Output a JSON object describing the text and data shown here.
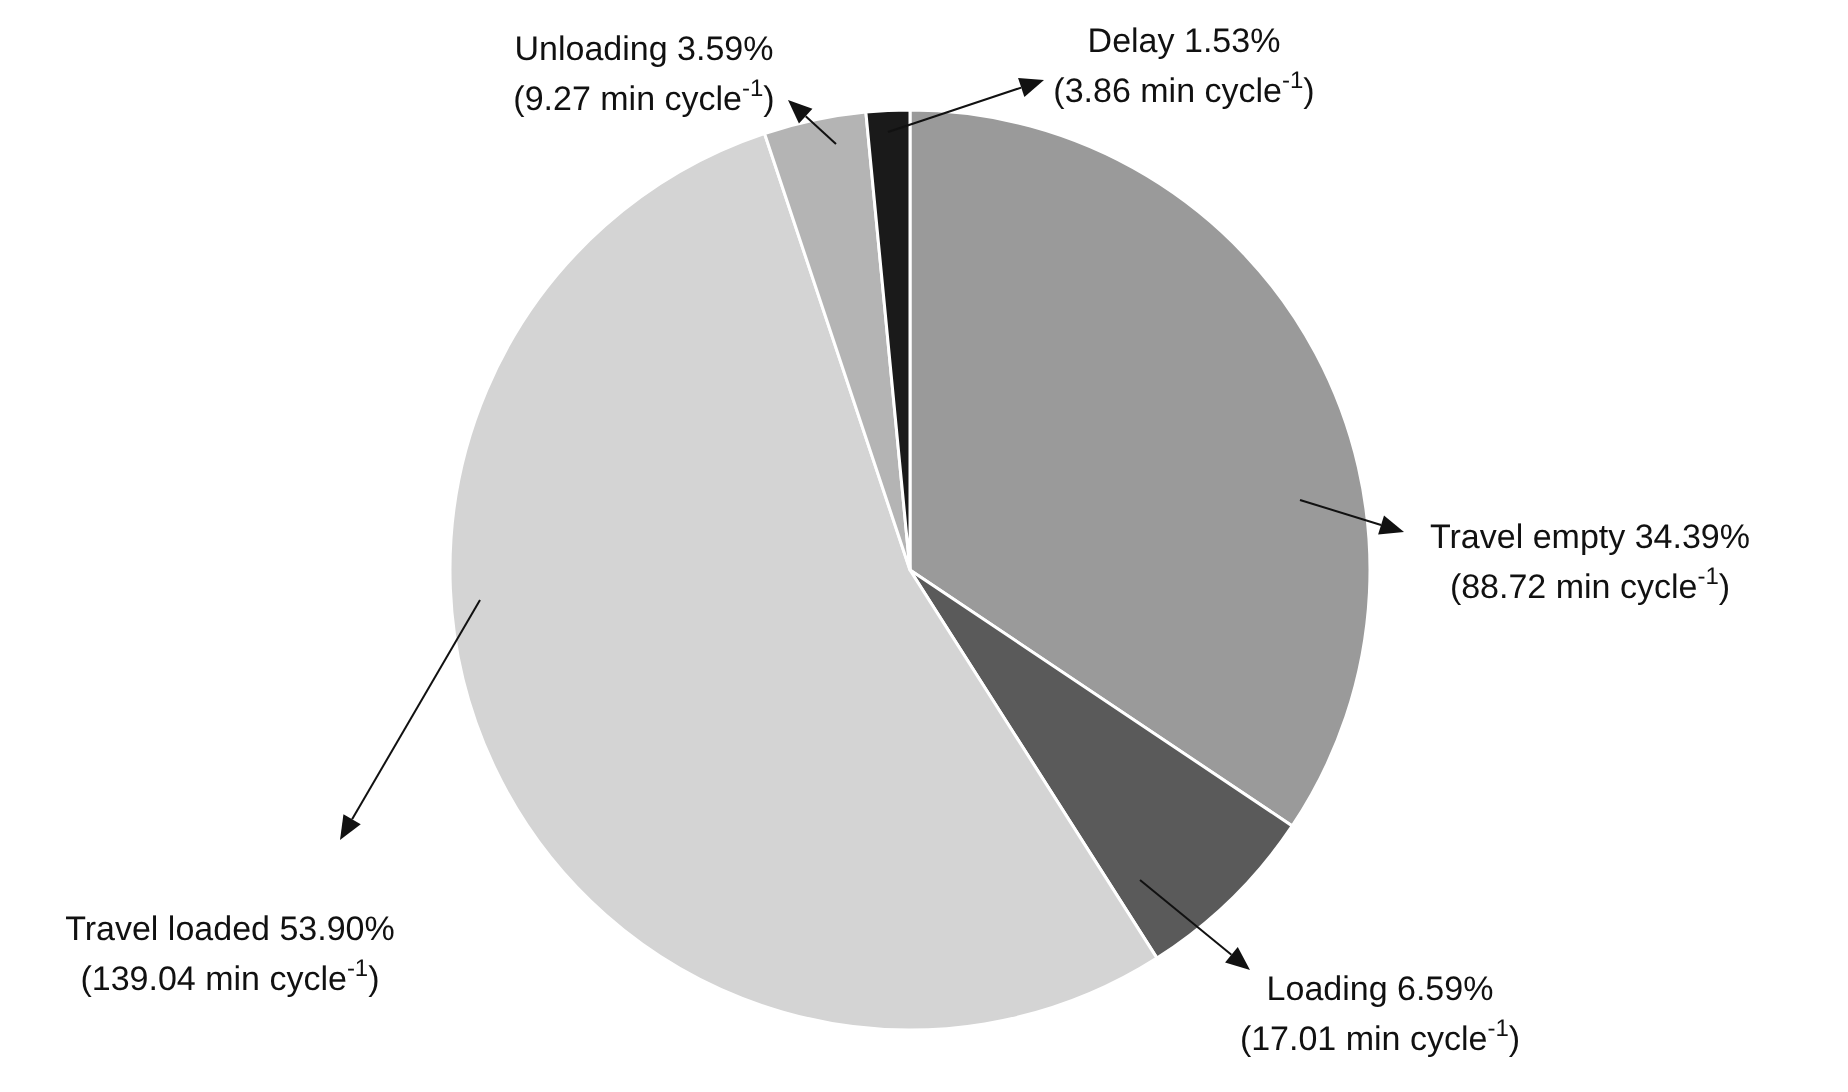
{
  "chart_data": {
    "type": "pie",
    "categories": [
      "Travel empty",
      "Loading",
      "Travel loaded",
      "Unloading",
      "Delay"
    ],
    "values": [
      34.39,
      6.59,
      53.9,
      3.59,
      1.53
    ],
    "colors": [
      "#9a9a9a",
      "#5a5a5a",
      "#d4d4d4",
      "#b4b4b4",
      "#1a1a1a"
    ],
    "value_labels": [
      "34.39%\n(88.72 min cycle$^{-1}$)",
      "6.59%\n(17.01 min cycle$^{-1}$)",
      "53.90%\n(139.04 min cycle$^{-1}$)",
      "3.59%\n(9.27 min cycle$^{-1}$)",
      "1.53%\n(3.86 min cycle$^{-1}$)"
    ],
    "legend": false
  }
}
